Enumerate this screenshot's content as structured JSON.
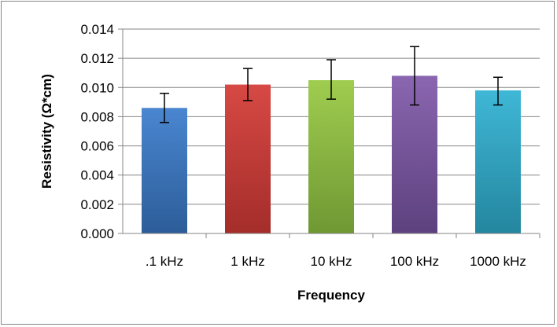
{
  "chart_data": {
    "type": "bar",
    "title": "",
    "xlabel": "Frequency",
    "ylabel": "Resistivity (Ω*cm)",
    "categories": [
      ".1 kHz",
      "1 kHz",
      "10 kHz",
      "100 kHz",
      "1000 kHz"
    ],
    "values": [
      0.0086,
      0.0102,
      0.0105,
      0.0108,
      0.0098
    ],
    "error_low": [
      0.0076,
      0.0091,
      0.0092,
      0.0088,
      0.0088
    ],
    "error_high": [
      0.0096,
      0.0113,
      0.0119,
      0.0128,
      0.0107
    ],
    "ylim": [
      0,
      0.014
    ],
    "yticks": [
      "0.000",
      "0.002",
      "0.004",
      "0.006",
      "0.008",
      "0.010",
      "0.012",
      "0.014"
    ],
    "grid": true,
    "legend": "none",
    "colors": [
      {
        "top": "#4a86d0",
        "bottom": "#2c5d99"
      },
      {
        "top": "#d74944",
        "bottom": "#a42d2a"
      },
      {
        "top": "#9fcd4f",
        "bottom": "#6f9833"
      },
      {
        "top": "#8a66b0",
        "bottom": "#5d417e"
      },
      {
        "top": "#3fb7d6",
        "bottom": "#24869f"
      }
    ]
  }
}
